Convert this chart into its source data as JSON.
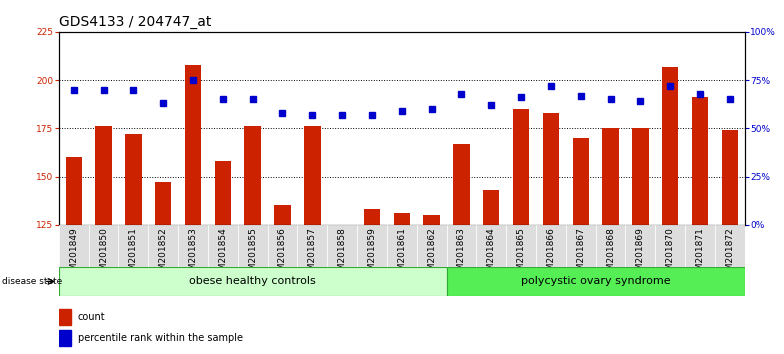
{
  "title": "GDS4133 / 204747_at",
  "samples": [
    "GSM201849",
    "GSM201850",
    "GSM201851",
    "GSM201852",
    "GSM201853",
    "GSM201854",
    "GSM201855",
    "GSM201856",
    "GSM201857",
    "GSM201858",
    "GSM201859",
    "GSM201861",
    "GSM201862",
    "GSM201863",
    "GSM201864",
    "GSM201865",
    "GSM201866",
    "GSM201867",
    "GSM201868",
    "GSM201869",
    "GSM201870",
    "GSM201871",
    "GSM201872"
  ],
  "counts": [
    160,
    176,
    172,
    147,
    208,
    158,
    176,
    135,
    176,
    125,
    133,
    131,
    130,
    167,
    143,
    185,
    183,
    170,
    175,
    175,
    207,
    191,
    174
  ],
  "percentiles": [
    70,
    70,
    70,
    63,
    75,
    65,
    65,
    58,
    57,
    57,
    57,
    59,
    60,
    68,
    62,
    66,
    72,
    67,
    65,
    64,
    72,
    68,
    65
  ],
  "group1_label": "obese healthy controls",
  "group2_label": "polycystic ovary syndrome",
  "group1_count": 13,
  "bar_color": "#cc2200",
  "dot_color": "#0000cc",
  "group1_bg": "#ccffcc",
  "group2_bg": "#55ee55",
  "ylim_left": [
    125,
    225
  ],
  "ylim_right": [
    0,
    100
  ],
  "yticks_left": [
    125,
    150,
    175,
    200,
    225
  ],
  "yticks_right": [
    0,
    25,
    50,
    75,
    100
  ],
  "grid_values": [
    150,
    175,
    200
  ],
  "title_fontsize": 10,
  "tick_fontsize": 6.5,
  "label_fontsize": 8,
  "disease_state_label": "disease state"
}
